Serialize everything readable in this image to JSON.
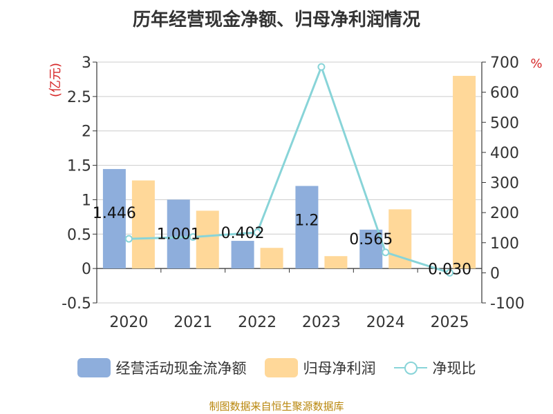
{
  "chart_data": {
    "type": "bar",
    "title": "历年经营现金净额、归母净利润情况",
    "categories": [
      "2020",
      "2021",
      "2022",
      "2023",
      "2024",
      "2025"
    ],
    "y_left": {
      "unit_label": "(亿元)",
      "range": [
        -0.5,
        3
      ],
      "ticks": [
        "3",
        "2.5",
        "2",
        "1.5",
        "1",
        "0.5",
        "0",
        "-0.5"
      ]
    },
    "y_right": {
      "unit_label": "%",
      "range": [
        -100,
        700
      ],
      "ticks": [
        "700",
        "600",
        "500",
        "400",
        "300",
        "200",
        "100",
        "0",
        "-100"
      ]
    },
    "series": [
      {
        "name": "经营活动现金流净额",
        "type": "bar",
        "axis": "left",
        "color": "#8eaedc",
        "values": [
          1.446,
          1.001,
          0.402,
          1.2,
          0.565,
          null
        ],
        "labels": [
          "1.446",
          "1.001",
          "0.402",
          "1.2",
          "0.565",
          ""
        ]
      },
      {
        "name": "归母净利润",
        "type": "bar",
        "axis": "left",
        "color": "#ffd899",
        "values": [
          1.28,
          0.84,
          0.3,
          0.18,
          0.86,
          2.8
        ]
      },
      {
        "name": "净现比",
        "type": "line",
        "axis": "right",
        "color": "#88d4d8",
        "values": [
          113,
          119,
          134,
          684,
          68,
          0
        ],
        "labels": [
          "",
          "",
          "",
          "",
          "",
          "0.030"
        ]
      }
    ],
    "grid": true,
    "legend_position": "bottom"
  },
  "source_note": "制图数据来自恒生聚源数据库"
}
